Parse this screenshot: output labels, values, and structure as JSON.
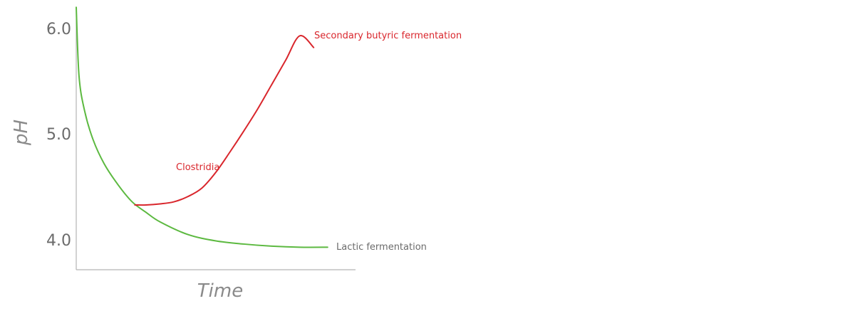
{
  "chart_data": {
    "type": "line",
    "title": "",
    "xlabel": "Time",
    "ylabel": "pH",
    "yticks": [
      "6.0",
      "5.0",
      "4.0"
    ],
    "ylim": [
      3.7,
      6.2
    ],
    "xlim": [
      0,
      100
    ],
    "grid": false,
    "series": [
      {
        "name": "Lactic fermentation",
        "color": "#5cb940",
        "x": [
          0,
          1,
          3,
          6,
          10,
          15,
          20,
          25,
          30,
          40,
          50,
          60,
          70,
          80,
          90
        ],
        "y": [
          6.2,
          5.55,
          5.22,
          4.95,
          4.72,
          4.52,
          4.36,
          4.26,
          4.17,
          4.05,
          3.99,
          3.96,
          3.94,
          3.93,
          3.93
        ]
      },
      {
        "name": "Secondary butyric fermentation",
        "color": "#d9262c",
        "x": [
          21,
          25,
          30,
          35,
          40,
          45,
          50,
          55,
          60,
          65,
          70,
          75,
          80,
          85
        ],
        "y": [
          4.33,
          4.33,
          4.34,
          4.36,
          4.41,
          4.49,
          4.64,
          4.83,
          5.03,
          5.24,
          5.47,
          5.7,
          5.93,
          5.82
        ]
      }
    ],
    "annotations": [
      {
        "text": "Secondary butyric fermentation",
        "color": "#d9262c"
      },
      {
        "text": "Clostridia",
        "color": "#d9262c"
      },
      {
        "text": "Lactic fermentation",
        "color": "#6b6b6b"
      }
    ]
  }
}
